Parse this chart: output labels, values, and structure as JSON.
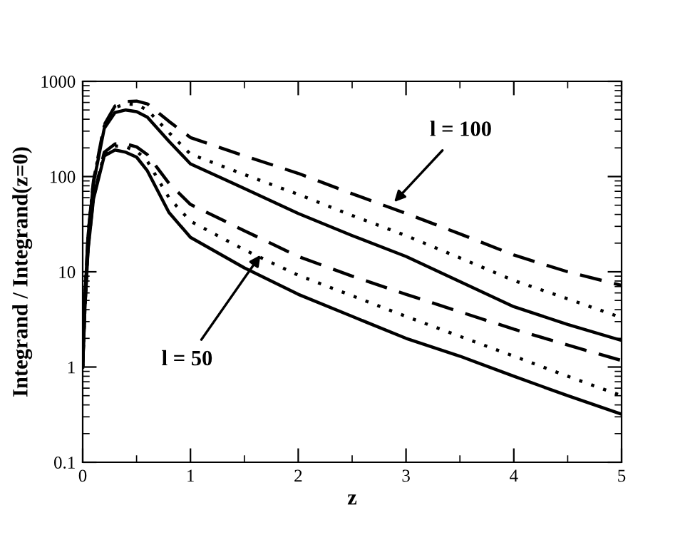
{
  "chart_data": {
    "type": "line",
    "xlabel": "z",
    "ylabel": "Integrand / Integrand(z=0)",
    "log": "y",
    "x": [
      0,
      0.02,
      0.05,
      0.1,
      0.2,
      0.3,
      0.4,
      0.5,
      0.6,
      0.8,
      1,
      1.5,
      2,
      2.5,
      3,
      3.5,
      4,
      4.5,
      5
    ],
    "xlim": [
      0,
      5
    ],
    "ylim": [
      0.1,
      1000
    ],
    "xticks": [
      0,
      1,
      2,
      3,
      4,
      5
    ],
    "yticks": [
      0.1,
      1,
      10,
      100,
      1000
    ],
    "marker": "none",
    "series": [
      {
        "color": "#000000",
        "line_style": "dashed",
        "values": [
          1,
          5,
          25,
          90,
          350,
          550,
          615,
          620,
          580,
          380,
          257,
          165,
          108,
          66,
          41,
          25,
          15,
          10,
          7.2
        ]
      },
      {
        "color": "#000000",
        "line_style": "dotted",
        "values": [
          1,
          5,
          25,
          90,
          340,
          530,
          580,
          570,
          500,
          290,
          172,
          105,
          65,
          39,
          24,
          14,
          8.1,
          5.2,
          3.3
        ]
      },
      {
        "color": "#000000",
        "line_style": "solid",
        "values": [
          1,
          5,
          24,
          85,
          320,
          470,
          500,
          480,
          420,
          235,
          136,
          75,
          41,
          24,
          14.5,
          7.9,
          4.3,
          2.8,
          1.9
        ]
      },
      {
        "color": "#000000",
        "line_style": "dashed",
        "values": [
          1,
          4,
          18,
          60,
          180,
          220,
          220,
          205,
          170,
          85,
          51,
          27,
          14.5,
          9,
          5.8,
          3.8,
          2.5,
          1.7,
          1.17
        ]
      },
      {
        "color": "#000000",
        "line_style": "dotted",
        "values": [
          1,
          4,
          18,
          60,
          175,
          210,
          205,
          185,
          145,
          60,
          34,
          17,
          9.2,
          5.6,
          3.4,
          2.1,
          1.3,
          0.8,
          0.5
        ]
      },
      {
        "color": "#000000",
        "line_style": "solid",
        "values": [
          1,
          4,
          17,
          58,
          165,
          190,
          180,
          160,
          115,
          42,
          23,
          11,
          5.8,
          3.4,
          2.0,
          1.3,
          0.8,
          0.5,
          0.32
        ]
      }
    ],
    "annotations": [
      {
        "text": "l = 100",
        "x": 2.89,
        "y": 54
      },
      {
        "text": "l = 50",
        "x": 1.65,
        "y": 15
      }
    ]
  }
}
